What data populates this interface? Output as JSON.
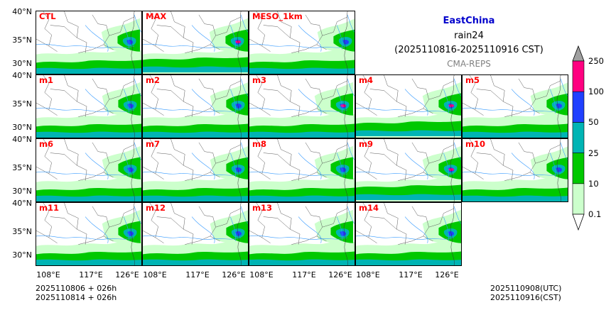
{
  "title": {
    "region": "EastChina",
    "variable": "rain24",
    "period": "(2025110816-2025110916 CST)",
    "system": "CMA-REPS"
  },
  "panels": [
    {
      "label": "CTL",
      "row": 0,
      "col": 0,
      "intensity": 1.0
    },
    {
      "label": "MAX",
      "row": 0,
      "col": 1,
      "intensity": 1.6
    },
    {
      "label": "MESO_1km",
      "row": 0,
      "col": 2,
      "intensity": 0.8
    },
    {
      "label": "m1",
      "row": 1,
      "col": 0,
      "intensity": 1.0
    },
    {
      "label": "m2",
      "row": 1,
      "col": 1,
      "intensity": 1.1
    },
    {
      "label": "m3",
      "row": 1,
      "col": 2,
      "intensity": 1.2
    },
    {
      "label": "m4",
      "row": 1,
      "col": 3,
      "intensity": 1.3
    },
    {
      "label": "m5",
      "row": 1,
      "col": 4,
      "intensity": 0.9
    },
    {
      "label": "m6",
      "row": 2,
      "col": 0,
      "intensity": 1.0
    },
    {
      "label": "m7",
      "row": 2,
      "col": 1,
      "intensity": 1.0
    },
    {
      "label": "m8",
      "row": 2,
      "col": 2,
      "intensity": 1.1
    },
    {
      "label": "m9",
      "row": 2,
      "col": 3,
      "intensity": 1.3
    },
    {
      "label": "m10",
      "row": 2,
      "col": 4,
      "intensity": 0.7
    },
    {
      "label": "m11",
      "row": 3,
      "col": 0,
      "intensity": 1.0
    },
    {
      "label": "m12",
      "row": 3,
      "col": 1,
      "intensity": 1.0
    },
    {
      "label": "m13",
      "row": 3,
      "col": 2,
      "intensity": 0.9
    },
    {
      "label": "m14",
      "row": 3,
      "col": 3,
      "intensity": 1.0
    }
  ],
  "axes": {
    "lat_labels": [
      "40°N",
      "35°N",
      "30°N"
    ],
    "lon_labels": [
      "108°E",
      "117°E",
      "126°E"
    ]
  },
  "colorbar": {
    "levels": [
      "0.1",
      "10",
      "25",
      "50",
      "100",
      "250"
    ],
    "colors": [
      "#ccffcc",
      "#00c800",
      "#00b4b4",
      "#2040ff",
      "#ff0080"
    ],
    "over_color": "#a0a0a0"
  },
  "footer": {
    "init_line1": "2025110806  +  026h",
    "init_line2": "2025110814  +  026h",
    "valid_utc": "2025110908(UTC)",
    "valid_cst": "2025110916(CST)"
  },
  "colors": {
    "label": "#ff0000",
    "region_title": "#0000cc",
    "subtitle": "#808080"
  }
}
